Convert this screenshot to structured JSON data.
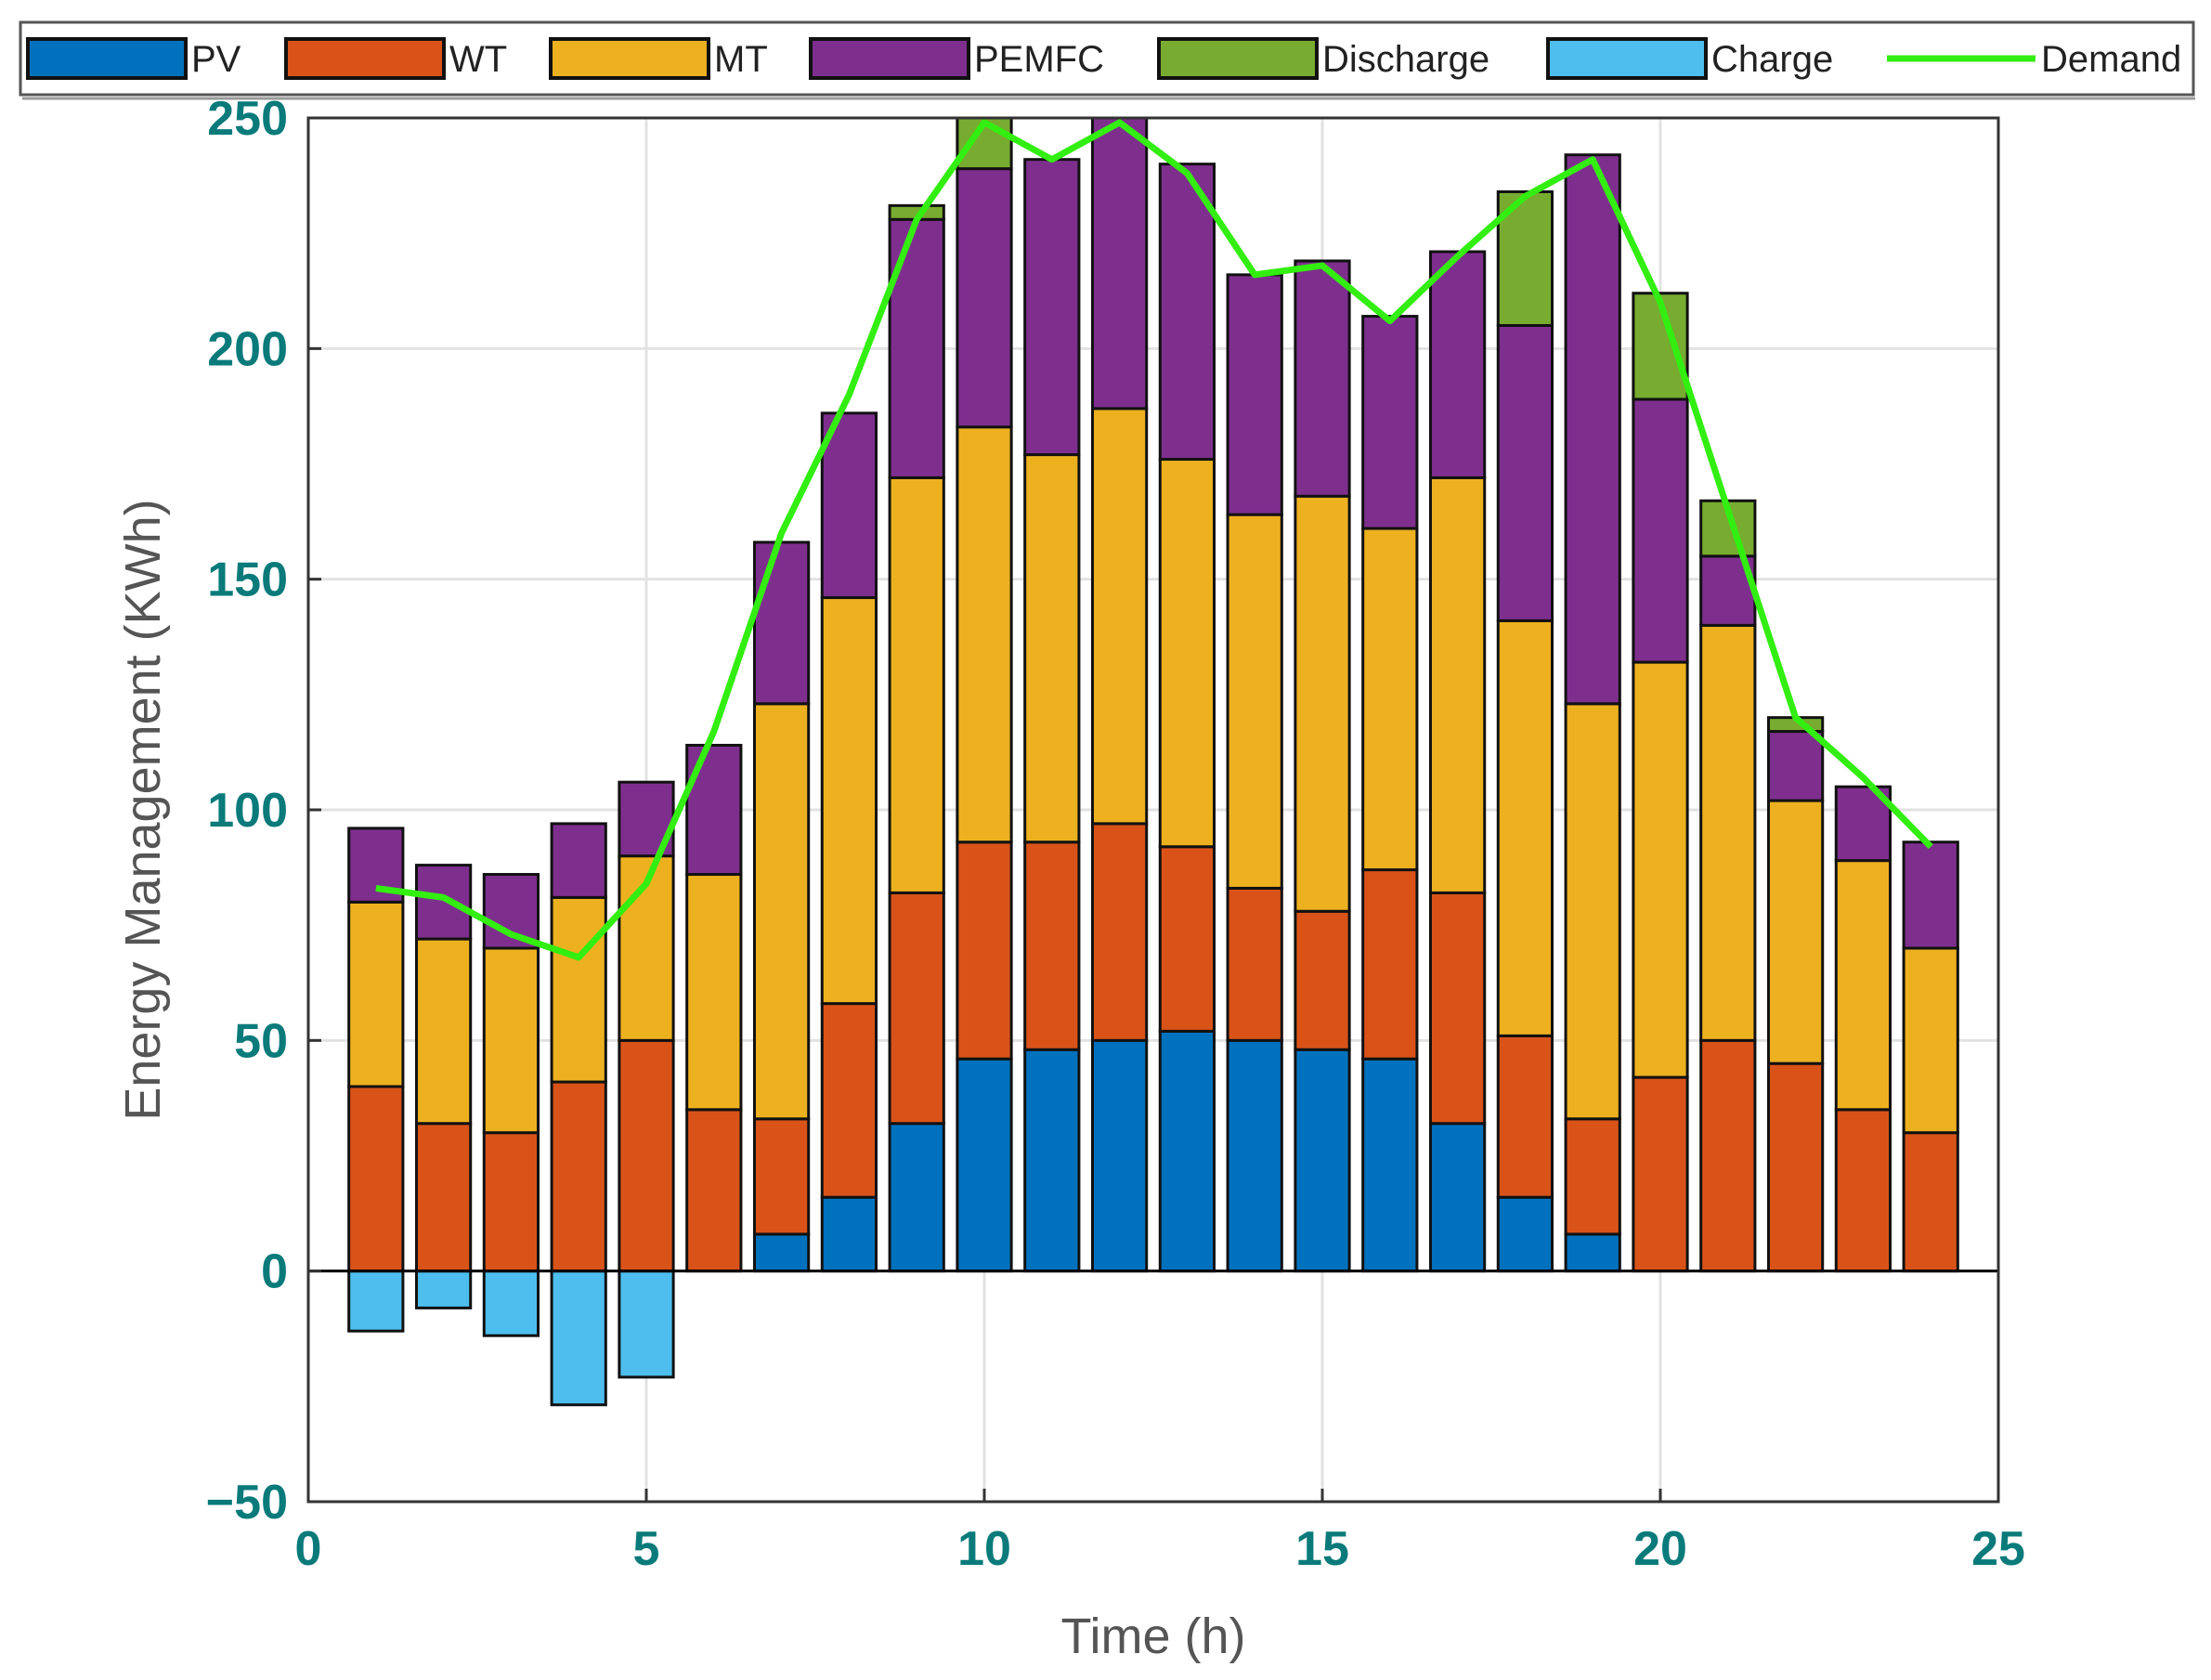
{
  "chart_data": {
    "type": "bar",
    "stacked": true,
    "xlabel": "Time (h)",
    "ylabel": "Energy Management (KWh)",
    "xlim": [
      0,
      25
    ],
    "ylim": [
      -50,
      250
    ],
    "xticks": [
      0,
      5,
      10,
      15,
      20,
      25
    ],
    "yticks": [
      -50,
      0,
      50,
      100,
      150,
      200,
      250
    ],
    "xtick_labels": [
      "0",
      "5",
      "10",
      "15",
      "20",
      "25"
    ],
    "ytick_labels": [
      "−50",
      "0",
      "50",
      "100",
      "150",
      "200",
      "250"
    ],
    "grid": true,
    "legend_position": "top",
    "x": [
      1,
      2,
      3,
      4,
      5,
      6,
      7,
      8,
      9,
      10,
      11,
      12,
      13,
      14,
      15,
      16,
      17,
      18,
      19,
      20,
      21,
      22,
      23,
      24
    ],
    "series": [
      {
        "name": "PV",
        "color": "#0072BD",
        "values": [
          0,
          0,
          0,
          0,
          0,
          0,
          8,
          16,
          32,
          46,
          48,
          50,
          52,
          50,
          48,
          46,
          32,
          16,
          8,
          0,
          0,
          0,
          0,
          0
        ]
      },
      {
        "name": "WT",
        "color": "#D95319",
        "values": [
          40,
          32,
          30,
          41,
          50,
          35,
          25,
          42,
          50,
          47,
          45,
          47,
          40,
          33,
          30,
          41,
          50,
          35,
          25,
          42,
          50,
          45,
          35,
          30
        ]
      },
      {
        "name": "MT",
        "color": "#EDB120",
        "values": [
          40,
          40,
          40,
          40,
          40,
          51,
          90,
          88,
          90,
          90,
          84,
          90,
          84,
          81,
          90,
          74,
          90,
          90,
          90,
          90,
          90,
          57,
          54,
          40
        ]
      },
      {
        "name": "PEMFC",
        "color": "#7E2F8E",
        "values": [
          16,
          16,
          16,
          16,
          16,
          28,
          35,
          40,
          56,
          56,
          64,
          63,
          64,
          52,
          51,
          46,
          49,
          64,
          119,
          57,
          15,
          15,
          16,
          23
        ]
      },
      {
        "name": "Discharge",
        "color": "#77AC30",
        "values": [
          0,
          0,
          0,
          0,
          0,
          0,
          0,
          0,
          3,
          11,
          0,
          0,
          0,
          0,
          0,
          0,
          0,
          29,
          0,
          23,
          12,
          3,
          0,
          0
        ]
      },
      {
        "name": "Charge",
        "color": "#4DBEEE",
        "values": [
          -13,
          -8,
          -14,
          -29,
          -23,
          0,
          0,
          0,
          0,
          0,
          0,
          0,
          0,
          0,
          0,
          0,
          0,
          0,
          0,
          0,
          0,
          0,
          0,
          0
        ]
      }
    ],
    "line": {
      "name": "Demand",
      "color": "#33EE11",
      "x": [
        1,
        2,
        3,
        4,
        5,
        6,
        7,
        8,
        9,
        10,
        11,
        12,
        13,
        14,
        15,
        16,
        17,
        18,
        19,
        20,
        21,
        22,
        23,
        24
      ],
      "values": [
        83,
        81,
        73,
        68,
        84,
        117,
        160,
        190,
        228,
        249,
        241,
        249,
        238,
        216,
        218,
        206,
        220,
        233,
        241,
        210,
        165,
        120,
        107,
        92
      ]
    }
  }
}
